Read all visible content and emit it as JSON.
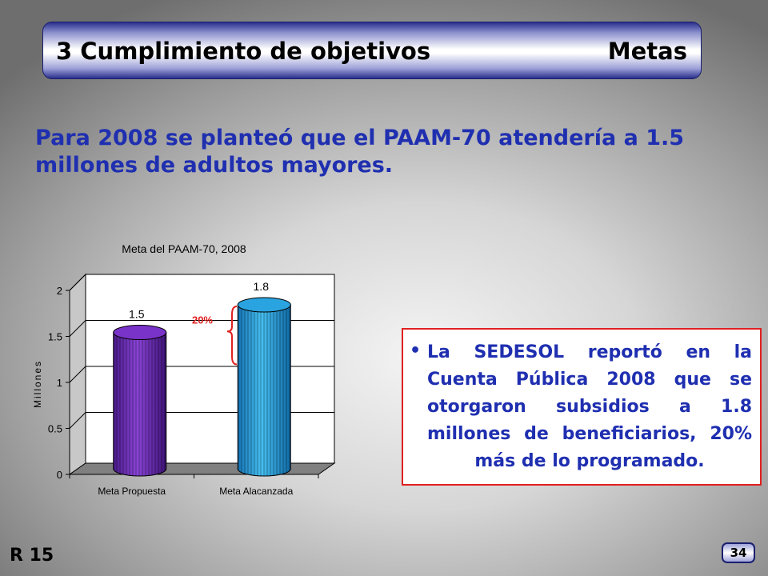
{
  "slide": {
    "title_left": "3 Cumplimiento de objetivos",
    "title_right": "Metas",
    "subtitle": "Para 2008 se planteó que el PAAM-70 atendería a 1.5 millones de adultos mayores.",
    "note_bullet": "•",
    "note_text": "La SEDESOL reportó en la Cuenta Pública 2008 que se otorgaron subsidios a 1.8 millones de beneficiarios, 20% más de lo programado.",
    "slide_code": "R 15",
    "page_number": "34"
  },
  "chart_data": {
    "type": "bar",
    "title": "Meta del PAAM-70, 2008",
    "ylabel": "Millones",
    "xlabel": "",
    "categories": [
      "Meta Propuesta",
      "Meta Alacanzada"
    ],
    "values": [
      1.5,
      1.8
    ],
    "data_labels": [
      "1.5",
      "1.8"
    ],
    "ylim": [
      0,
      2
    ],
    "yticks": [
      0,
      0.5,
      1,
      1.5,
      2
    ],
    "ytick_labels": [
      "0",
      "0.5",
      "1",
      "1.5",
      "2"
    ],
    "grid": true,
    "annotation": "20%",
    "colors": {
      "bar1": "#7a33c8",
      "bar2": "#2aa4e0",
      "annotation": "#e02020"
    }
  }
}
